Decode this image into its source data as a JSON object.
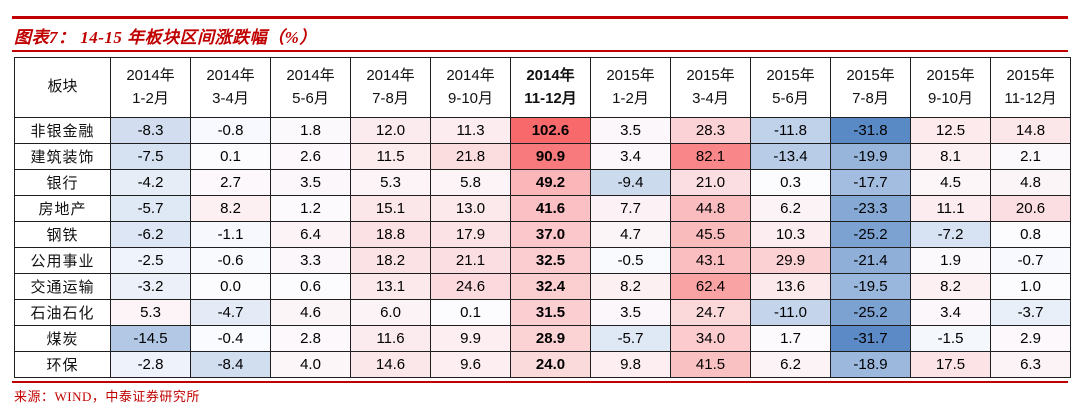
{
  "header": {
    "title": "图表7： 14-15 年板块区间涨跌幅（%）"
  },
  "footer": {
    "source": "来源：WIND，中泰证券研究所"
  },
  "colors": {
    "accent_red": "#C00000",
    "table_border": "#1F1F1F"
  },
  "chart_data": {
    "type": "heatmap",
    "title": "图表7： 14-15 年板块区间涨跌幅（%）",
    "corner_label": "板块",
    "unit": "%",
    "columns": [
      {
        "year": "2014年",
        "months": "1-2月",
        "bold": false
      },
      {
        "year": "2014年",
        "months": "3-4月",
        "bold": false
      },
      {
        "year": "2014年",
        "months": "5-6月",
        "bold": false
      },
      {
        "year": "2014年",
        "months": "7-8月",
        "bold": false
      },
      {
        "year": "2014年",
        "months": "9-10月",
        "bold": false
      },
      {
        "year": "2014年",
        "months": "11-12月",
        "bold": true
      },
      {
        "year": "2015年",
        "months": "1-2月",
        "bold": false
      },
      {
        "year": "2015年",
        "months": "3-4月",
        "bold": false
      },
      {
        "year": "2015年",
        "months": "5-6月",
        "bold": false
      },
      {
        "year": "2015年",
        "months": "7-8月",
        "bold": false
      },
      {
        "year": "2015年",
        "months": "9-10月",
        "bold": false
      },
      {
        "year": "2015年",
        "months": "11-12月",
        "bold": false
      }
    ],
    "rows": [
      {
        "sector": "非银金融",
        "values": [
          -8.3,
          -0.8,
          1.8,
          12.0,
          11.3,
          102.6,
          3.5,
          28.3,
          -11.8,
          -31.8,
          12.5,
          14.8
        ]
      },
      {
        "sector": "建筑装饰",
        "values": [
          -7.5,
          0.1,
          2.6,
          11.5,
          21.8,
          90.9,
          3.4,
          82.1,
          -13.4,
          -19.9,
          8.1,
          2.1
        ]
      },
      {
        "sector": "银行",
        "values": [
          -4.2,
          2.7,
          3.5,
          5.3,
          5.8,
          49.2,
          -9.4,
          21.0,
          0.3,
          -17.7,
          4.5,
          4.8
        ]
      },
      {
        "sector": "房地产",
        "values": [
          -5.7,
          8.2,
          1.2,
          15.1,
          13.0,
          41.6,
          7.7,
          44.8,
          6.2,
          -23.3,
          11.1,
          20.6
        ]
      },
      {
        "sector": "钢铁",
        "values": [
          -6.2,
          -1.1,
          6.4,
          18.8,
          17.9,
          37.0,
          4.7,
          45.5,
          10.3,
          -25.2,
          -7.2,
          0.8
        ]
      },
      {
        "sector": "公用事业",
        "values": [
          -2.5,
          -0.6,
          3.3,
          18.2,
          21.1,
          32.5,
          -0.5,
          43.1,
          29.9,
          -21.4,
          1.9,
          -0.7
        ]
      },
      {
        "sector": "交通运输",
        "values": [
          -3.2,
          0.0,
          0.6,
          13.1,
          24.6,
          32.4,
          8.2,
          62.4,
          13.6,
          -19.5,
          8.2,
          1.0
        ]
      },
      {
        "sector": "石油石化",
        "values": [
          5.3,
          -4.7,
          4.6,
          6.0,
          0.1,
          31.5,
          3.5,
          24.7,
          -11.0,
          -25.2,
          3.4,
          -3.7
        ]
      },
      {
        "sector": "煤炭",
        "values": [
          -14.5,
          -0.4,
          2.8,
          11.6,
          9.9,
          28.9,
          -5.7,
          34.0,
          1.7,
          -31.7,
          -1.5,
          2.9
        ]
      },
      {
        "sector": "环保",
        "values": [
          -2.8,
          -8.4,
          4.0,
          14.6,
          9.6,
          24.0,
          9.8,
          41.5,
          6.2,
          -18.9,
          17.5,
          6.3
        ]
      }
    ],
    "color_scale": {
      "min_color": "#5A8AC6",
      "mid_color": "#FCFCFF",
      "max_color": "#F8696B",
      "midpoint": 0,
      "min_value": -31.8,
      "max_value": 102.6
    },
    "value_decimals": 1
  }
}
